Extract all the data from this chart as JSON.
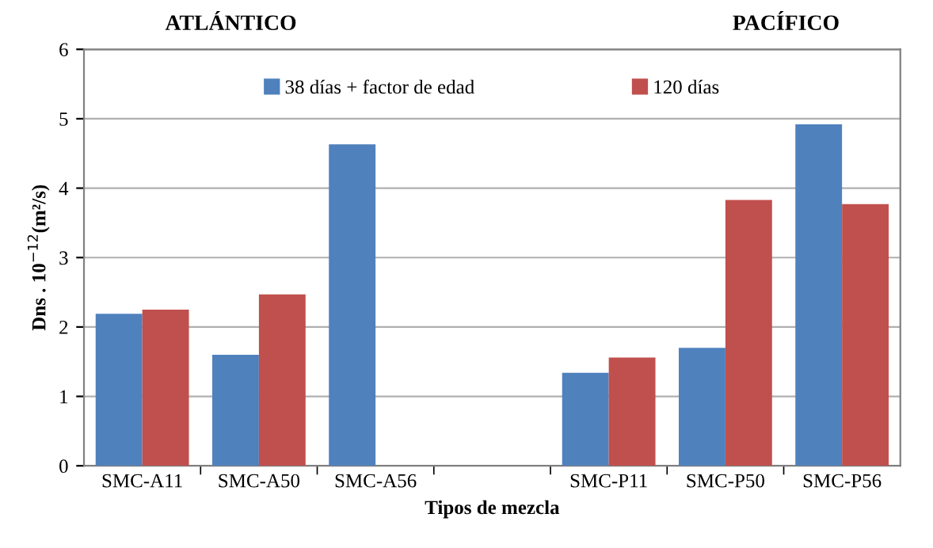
{
  "chart_data": {
    "type": "bar",
    "xlabel": "Tipos de mezcla",
    "ylabel": "Dns . 10$^{−12}$(m²/s)",
    "annotations": [
      "ATLÁNTICO",
      "PACÍFICO"
    ],
    "categories": [
      "SMC-A11",
      "SMC-A50",
      "SMC-A56",
      null,
      "SMC-P11",
      "SMC-P50",
      "SMC-P56"
    ],
    "series": [
      {
        "name": "38 días + factor de edad",
        "color": "#4f81bd",
        "values": [
          2.19,
          1.6,
          4.63,
          null,
          1.34,
          1.7,
          4.92
        ]
      },
      {
        "name": "120 días",
        "color": "#c0504d",
        "values": [
          2.25,
          2.47,
          null,
          null,
          1.56,
          3.83,
          3.77
        ]
      }
    ],
    "ylim": [
      0,
      6
    ],
    "yticks": [
      0,
      1,
      2,
      3,
      4,
      5,
      6
    ],
    "grid": "y",
    "legend": "top"
  }
}
